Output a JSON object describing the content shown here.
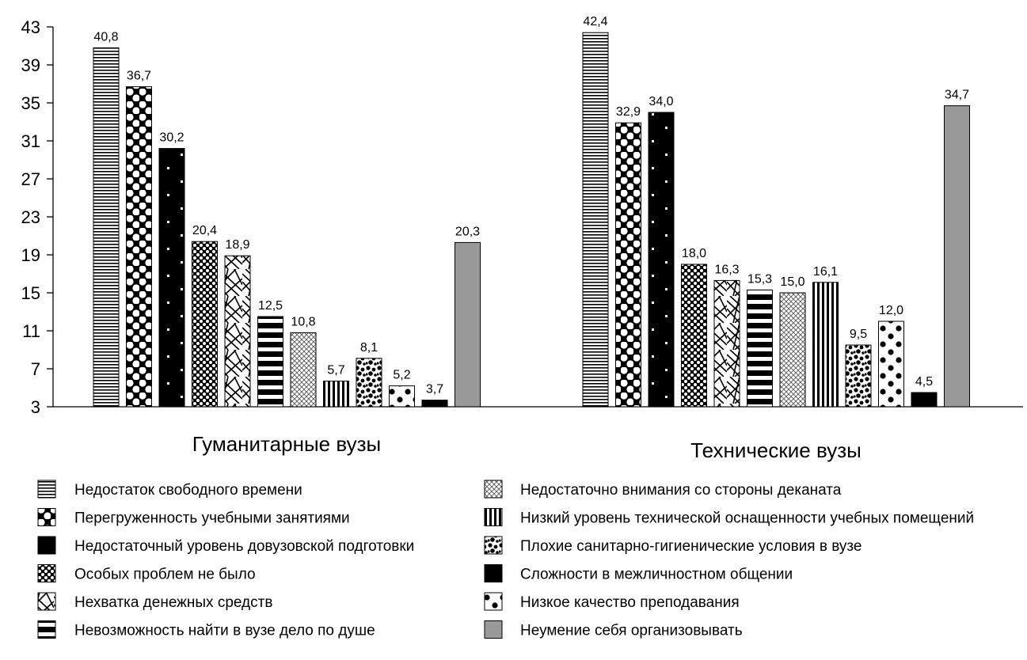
{
  "chart_data": {
    "type": "bar",
    "ylim": [
      3,
      43
    ],
    "yticks": [
      3,
      7,
      11,
      15,
      19,
      23,
      27,
      31,
      35,
      39,
      43
    ],
    "categories": [
      "Гуманитарные вузы",
      "Технические вузы"
    ],
    "series": [
      {
        "name": "Недостаток свободного времени",
        "pattern": "hlines",
        "values": [
          40.8,
          42.4
        ],
        "labels": [
          "40,8",
          "42,4"
        ]
      },
      {
        "name": "Перегруженность учебными занятиями",
        "pattern": "bigdots",
        "values": [
          36.7,
          32.9
        ],
        "labels": [
          "36,7",
          "32,9"
        ]
      },
      {
        "name": "Недостаточный уровень довузовской подготовки",
        "pattern": "sparsewhitedots",
        "values": [
          30.2,
          34.0
        ],
        "labels": [
          "30,2",
          "34,0"
        ]
      },
      {
        "name": "Особых проблем не было",
        "pattern": "densedots",
        "values": [
          20.4,
          18.0
        ],
        "labels": [
          "20,4",
          "18,0"
        ]
      },
      {
        "name": "Нехватка денежных средств",
        "pattern": "sticks",
        "values": [
          18.9,
          16.3
        ],
        "labels": [
          "18,9",
          "16,3"
        ]
      },
      {
        "name": "Невозможность найти в вузе дело по душе",
        "pattern": "thickhlines",
        "values": [
          12.5,
          15.3
        ],
        "labels": [
          "12,5",
          "15,3"
        ]
      },
      {
        "name": "Недостаточно внимания со стороны деканата",
        "pattern": "crosshatch",
        "values": [
          10.8,
          15.0
        ],
        "labels": [
          "10,8",
          "15,0"
        ]
      },
      {
        "name": "Низкий уровень технической оснащенности учебных помещений",
        "pattern": "vlines",
        "values": [
          5.7,
          16.1
        ],
        "labels": [
          "5,7",
          "16,1"
        ]
      },
      {
        "name": "Плохие санитарно-гигиенические условия в вузе",
        "pattern": "blobs",
        "values": [
          8.1,
          9.5
        ],
        "labels": [
          "8,1",
          "9,5"
        ]
      },
      {
        "name": "Низкое качество преподавания",
        "pattern": "bigblackdots",
        "values": [
          5.2,
          12.0
        ],
        "labels": [
          "5,2",
          "12,0"
        ]
      },
      {
        "name": "Сложности в межличностном общении",
        "pattern": "solidblack",
        "values": [
          3.7,
          4.5
        ],
        "labels": [
          "3,7",
          "4,5"
        ]
      },
      {
        "name": "Неумение себя организовывать",
        "pattern": "solidgray",
        "values": [
          20.3,
          34.7
        ],
        "labels": [
          "20,3",
          "34,7"
        ]
      }
    ],
    "legend_position": "bottom",
    "colors": {
      "gray_bar": "#999999",
      "black": "#000000"
    }
  },
  "legend": {
    "left": [
      {
        "label": "Недостаток свободного времени",
        "pattern": "hlines"
      },
      {
        "label": "Перегруженность учебными занятиями",
        "pattern": "bigdots"
      },
      {
        "label": "Недостаточный уровень довузовской подготовки",
        "pattern": "sparsewhitedots"
      },
      {
        "label": "Особых проблем не было",
        "pattern": "densedots"
      },
      {
        "label": "Нехватка денежных средств",
        "pattern": "sticks"
      },
      {
        "label": "Невозможность найти в вузе дело по душе",
        "pattern": "thickhlines"
      }
    ],
    "right": [
      {
        "label": "Недостаточно внимания со стороны деканата",
        "pattern": "crosshatch"
      },
      {
        "label": "Низкий уровень технической оснащенности учебных помещений",
        "pattern": "vlines"
      },
      {
        "label": "Плохие санитарно-гигиенические условия в вузе",
        "pattern": "blobs"
      },
      {
        "label": "Сложности в межличностном общении",
        "pattern": "solidblack"
      },
      {
        "label": "Низкое качество преподавания",
        "pattern": "bigblackdots"
      },
      {
        "label": "Неумение себя организовывать",
        "pattern": "solidgray"
      }
    ]
  }
}
